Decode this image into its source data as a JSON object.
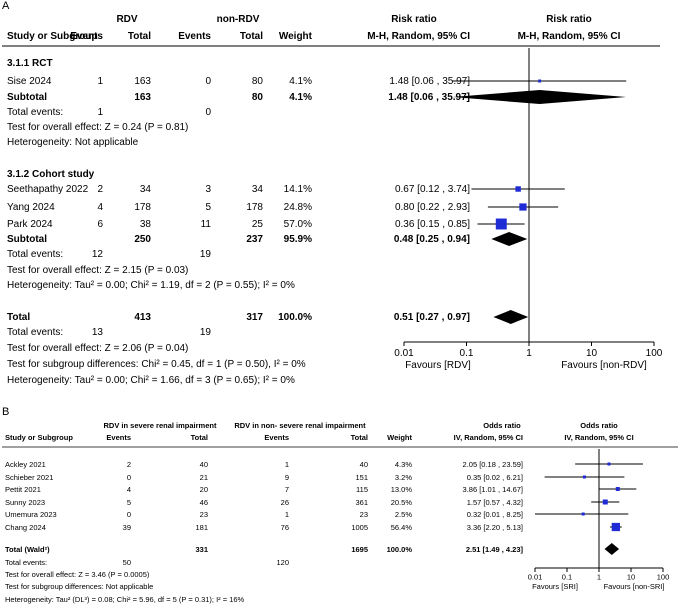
{
  "panelA": {
    "letter": "A",
    "group1": "RDV",
    "group2": "non-RDV",
    "effect_title": "Risk ratio",
    "effect_title2": "Risk ratio",
    "cols": {
      "study": "Study or Subgroup",
      "events1": "Events",
      "total1": "Total",
      "events2": "Events",
      "total2": "Total",
      "weight": "Weight",
      "ci": "M-H, Random, 95% CI",
      "ci2": "M-H, Random, 95% CI"
    },
    "sections": [
      {
        "title": "3.1.1 RCT",
        "studies": [
          {
            "name": "Sise 2024",
            "e1": "1",
            "n1": "163",
            "e2": "0",
            "n2": "80",
            "w": "4.1%",
            "ci": "1.48 [0.06 , 35.97]",
            "est": 1.48,
            "lo": 0.06,
            "hi": 35.97,
            "weight": 4.1
          }
        ],
        "subtotal": {
          "label": "Subtotal",
          "n1": "163",
          "n2": "80",
          "w": "4.1%",
          "ci": "1.48 [0.06 , 35.97]",
          "est": 1.48,
          "lo": 0.06,
          "hi": 35.97
        },
        "total_events": {
          "label": "Total events:",
          "e1": "1",
          "e2": "0"
        },
        "lines": [
          "Test for overall effect: Z = 0.24 (P = 0.81)",
          "Heterogeneity: Not applicable"
        ]
      },
      {
        "title": "3.1.2 Cohort study",
        "studies": [
          {
            "name": "Seethapathy 2022",
            "e1": "2",
            "n1": "34",
            "e2": "3",
            "n2": "34",
            "w": "14.1%",
            "ci": "0.67 [0.12 , 3.74]",
            "est": 0.67,
            "lo": 0.12,
            "hi": 3.74,
            "weight": 14.1
          },
          {
            "name": "Yang 2024",
            "e1": "4",
            "n1": "178",
            "e2": "5",
            "n2": "178",
            "w": "24.8%",
            "ci": "0.80 [0.22 , 2.93]",
            "est": 0.8,
            "lo": 0.22,
            "hi": 2.93,
            "weight": 24.8
          },
          {
            "name": "Park 2024",
            "e1": "6",
            "n1": "38",
            "e2": "11",
            "n2": "25",
            "w": "57.0%",
            "ci": "0.36 [0.15 , 0.85]",
            "est": 0.36,
            "lo": 0.15,
            "hi": 0.85,
            "weight": 57.0
          }
        ],
        "subtotal": {
          "label": "Subtotal",
          "n1": "250",
          "n2": "237",
          "w": "95.9%",
          "ci": "0.48 [0.25 , 0.94]",
          "est": 0.48,
          "lo": 0.25,
          "hi": 0.94
        },
        "total_events": {
          "label": "Total events:",
          "e1": "12",
          "e2": "19"
        },
        "lines": [
          "Test for overall effect: Z = 2.15 (P = 0.03)",
          "Heterogeneity: Tau² = 0.00; Chi² = 1.19, df = 2 (P = 0.55); I² = 0%"
        ]
      }
    ],
    "total": {
      "label": "Total",
      "n1": "413",
      "n2": "317",
      "w": "100.0%",
      "ci": "0.51 [0.27 , 0.97]",
      "est": 0.51,
      "lo": 0.27,
      "hi": 0.97
    },
    "total_events": {
      "label": "Total events:",
      "e1": "13",
      "e2": "19"
    },
    "footer": [
      "Test for overall effect: Z = 2.06 (P = 0.04)",
      "Test for subgroup differences: Chi² = 0.45, df = 1 (P = 0.50), I² = 0%",
      "Heterogeneity: Tau² = 0.00; Chi² = 1.66, df = 3 (P = 0.65); I² = 0%"
    ],
    "axis": {
      "ticks": [
        "0.01",
        "0.1",
        "1",
        "10",
        "100"
      ],
      "tick_values": [
        0.01,
        0.1,
        1,
        10,
        100
      ],
      "left_label": "Favours [RDV]",
      "right_label": "Favours [non-RDV]",
      "scale": "log"
    }
  },
  "panelB": {
    "letter": "B",
    "group1": "RDV in severe renal impairment",
    "group2": "RDV in non- severe renal impairment",
    "effect_title": "Odds ratio",
    "effect_title2": "Odds ratio",
    "cols": {
      "study": "Study or Subgroup",
      "events1": "Events",
      "total1": "Total",
      "events2": "Events",
      "total2": "Total",
      "weight": "Weight",
      "ci": "IV, Random, 95% CI",
      "ci2": "IV, Random, 95% CI"
    },
    "studies": [
      {
        "name": "Ackley 2021",
        "e1": "2",
        "n1": "40",
        "e2": "1",
        "n2": "40",
        "w": "4.3%",
        "ci": "2.05 [0.18 , 23.59]",
        "est": 2.05,
        "lo": 0.18,
        "hi": 23.59,
        "weight": 4.3
      },
      {
        "name": "Schieber 2021",
        "e1": "0",
        "n1": "21",
        "e2": "9",
        "n2": "151",
        "w": "3.2%",
        "ci": "0.35 [0.02 , 6.21]",
        "est": 0.35,
        "lo": 0.02,
        "hi": 6.21,
        "weight": 3.2
      },
      {
        "name": "Pettit 2021",
        "e1": "4",
        "n1": "20",
        "e2": "7",
        "n2": "115",
        "w": "13.0%",
        "ci": "3.86 [1.01 , 14.67]",
        "est": 3.86,
        "lo": 1.01,
        "hi": 14.67,
        "weight": 13.0
      },
      {
        "name": "Sunny 2023",
        "e1": "5",
        "n1": "46",
        "e2": "26",
        "n2": "361",
        "w": "20.5%",
        "ci": "1.57 [0.57 , 4.32]",
        "est": 1.57,
        "lo": 0.57,
        "hi": 4.32,
        "weight": 20.5
      },
      {
        "name": "Umemura 2023",
        "e1": "0",
        "n1": "23",
        "e2": "1",
        "n2": "23",
        "w": "2.5%",
        "ci": "0.32 [0.01 , 8.25]",
        "est": 0.32,
        "lo": 0.01,
        "hi": 8.25,
        "weight": 2.5
      },
      {
        "name": "Chang 2024",
        "e1": "39",
        "n1": "181",
        "e2": "76",
        "n2": "1005",
        "w": "56.4%",
        "ci": "3.36 [2.20 , 5.13]",
        "est": 3.36,
        "lo": 2.2,
        "hi": 5.13,
        "weight": 56.4
      }
    ],
    "total": {
      "label": "Total (Wald²)",
      "n1": "331",
      "n2": "1695",
      "w": "100.0%",
      "ci": "2.51 [1.49 , 4.23]",
      "est": 2.51,
      "lo": 1.49,
      "hi": 4.23
    },
    "total_events": {
      "label": "Total events:",
      "e1": "50",
      "e2": "120"
    },
    "footer": [
      "Test for overall effect: Z = 3.46 (P = 0.0005)",
      "Test for subgroup differences: Not applicable",
      "Heterogeneity: Tau² (DL³) = 0.08; Chi² = 5.96, df = 5 (P = 0.31); I² = 16%"
    ],
    "axis": {
      "ticks": [
        "0.01",
        "0.1",
        "1",
        "10",
        "100"
      ],
      "tick_values": [
        0.01,
        0.1,
        1,
        10,
        100
      ],
      "left_label": "Favours [SRI]",
      "right_label": "Favours [non-SRI]",
      "scale": "log"
    }
  },
  "colors": {
    "marker": "#1f2bd4",
    "diamond": "#000000",
    "line": "#000000"
  },
  "chart_data": [
    {
      "type": "forest",
      "title": "Risk ratio",
      "scale": "log",
      "xlim": [
        0.01,
        100
      ],
      "series": [
        {
          "name": "Sise 2024",
          "x": 1.48,
          "lo": 0.06,
          "hi": 35.97,
          "weight": 4.1
        },
        {
          "name": "Subtotal",
          "x": 1.48,
          "lo": 0.06,
          "hi": 35.97
        },
        {
          "name": "Seethapathy 2022",
          "x": 0.67,
          "lo": 0.12,
          "hi": 3.74,
          "weight": 14.1
        },
        {
          "name": "Yang 2024",
          "x": 0.8,
          "lo": 0.22,
          "hi": 2.93,
          "weight": 24.8
        },
        {
          "name": "Park 2024",
          "x": 0.36,
          "lo": 0.15,
          "hi": 0.85,
          "weight": 57.0
        },
        {
          "name": "Subtotal",
          "x": 0.48,
          "lo": 0.25,
          "hi": 0.94
        },
        {
          "name": "Total",
          "x": 0.51,
          "lo": 0.27,
          "hi": 0.97
        }
      ]
    },
    {
      "type": "forest",
      "title": "Odds ratio",
      "scale": "log",
      "xlim": [
        0.01,
        100
      ],
      "series": [
        {
          "name": "Ackley 2021",
          "x": 2.05,
          "lo": 0.18,
          "hi": 23.59,
          "weight": 4.3
        },
        {
          "name": "Schieber 2021",
          "x": 0.35,
          "lo": 0.02,
          "hi": 6.21,
          "weight": 3.2
        },
        {
          "name": "Pettit 2021",
          "x": 3.86,
          "lo": 1.01,
          "hi": 14.67,
          "weight": 13.0
        },
        {
          "name": "Sunny 2023",
          "x": 1.57,
          "lo": 0.57,
          "hi": 4.32,
          "weight": 20.5
        },
        {
          "name": "Umemura 2023",
          "x": 0.32,
          "lo": 0.01,
          "hi": 8.25,
          "weight": 2.5
        },
        {
          "name": "Chang 2024",
          "x": 3.36,
          "lo": 2.2,
          "hi": 5.13,
          "weight": 56.4
        },
        {
          "name": "Total (Wald²)",
          "x": 2.51,
          "lo": 1.49,
          "hi": 4.23
        }
      ]
    }
  ]
}
